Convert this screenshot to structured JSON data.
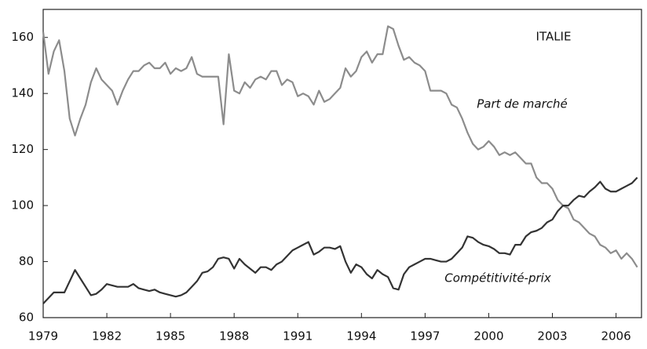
{
  "chart_data": {
    "type": "line",
    "title": "ITALIE",
    "x": [
      1979,
      1979.25,
      1979.5,
      1979.75,
      1980,
      1980.25,
      1980.5,
      1980.75,
      1981,
      1981.25,
      1981.5,
      1981.75,
      1982,
      1982.25,
      1982.5,
      1982.75,
      1983,
      1983.25,
      1983.5,
      1983.75,
      1984,
      1984.25,
      1984.5,
      1984.75,
      1985,
      1985.25,
      1985.5,
      1985.75,
      1986,
      1986.25,
      1986.5,
      1986.75,
      1987,
      1987.25,
      1987.5,
      1987.75,
      1988,
      1988.25,
      1988.5,
      1988.75,
      1989,
      1989.25,
      1989.5,
      1989.75,
      1990,
      1990.25,
      1990.5,
      1990.75,
      1991,
      1991.25,
      1991.5,
      1991.75,
      1992,
      1992.25,
      1992.5,
      1992.75,
      1993,
      1993.25,
      1993.5,
      1993.75,
      1994,
      1994.25,
      1994.5,
      1994.75,
      1995,
      1995.25,
      1995.5,
      1995.75,
      1996,
      1996.25,
      1996.5,
      1996.75,
      1997,
      1997.25,
      1997.5,
      1997.75,
      1998,
      1998.25,
      1998.5,
      1998.75,
      1999,
      1999.25,
      1999.5,
      1999.75,
      2000,
      2000.25,
      2000.5,
      2000.75,
      2001,
      2001.25,
      2001.5,
      2001.75,
      2002,
      2002.25,
      2002.5,
      2002.75,
      2003,
      2003.25,
      2003.5,
      2003.75,
      2004,
      2004.25,
      2004.5,
      2004.75,
      2005,
      2005.25,
      2005.5,
      2005.75,
      2006,
      2006.25,
      2006.5,
      2006.75,
      2007
    ],
    "series": [
      {
        "name": "Part de marché",
        "color": "#8c8c8c",
        "values": [
          162,
          147,
          155,
          159,
          148,
          131,
          125,
          131,
          136,
          144,
          149,
          145,
          143,
          141,
          136,
          141,
          145,
          148,
          148,
          150,
          151,
          149,
          149,
          151,
          147,
          149,
          148,
          149,
          153,
          147,
          146,
          146,
          146,
          146,
          129,
          154,
          141,
          140,
          144,
          142,
          145,
          146,
          145,
          148,
          148,
          143,
          145,
          144,
          139,
          140,
          139,
          136,
          141,
          137,
          138,
          140,
          142,
          149,
          146,
          148,
          153,
          155,
          151,
          154,
          154,
          164,
          163,
          157,
          152,
          153,
          151,
          150,
          148,
          141,
          141,
          141,
          140,
          136,
          135,
          131,
          126,
          122,
          120,
          121,
          123,
          121,
          118,
          119,
          118,
          119,
          117,
          115,
          115,
          110,
          108,
          108,
          106,
          102,
          100,
          99,
          95,
          94,
          92,
          90,
          89,
          86,
          85,
          83,
          84,
          81,
          83,
          81,
          78
        ]
      },
      {
        "name": "Compétitivité-prix",
        "color": "#333333",
        "values": [
          65,
          67,
          69,
          69,
          69,
          73,
          77,
          74,
          71,
          68,
          68.5,
          70,
          72,
          71.5,
          71,
          71,
          71,
          72,
          70.5,
          70,
          69.5,
          70,
          69,
          68.5,
          68,
          67.5,
          68,
          69,
          71,
          73,
          76,
          76.5,
          78,
          81,
          81.5,
          81,
          77.5,
          81,
          79,
          77.5,
          76,
          78,
          78,
          77,
          79,
          80,
          82,
          84,
          85,
          86,
          87,
          82.5,
          83.5,
          85,
          85,
          84.5,
          85.5,
          80,
          76,
          79,
          78,
          75.5,
          74,
          77,
          75.5,
          74.5,
          70.5,
          70,
          75.5,
          78,
          79,
          80,
          81,
          81,
          80.5,
          80,
          80,
          81,
          83,
          85,
          89,
          88.5,
          87,
          86,
          85.5,
          84.5,
          83,
          83,
          82.5,
          86,
          86,
          89,
          90.5,
          91,
          92,
          94,
          95,
          98,
          100,
          100,
          102,
          103.5,
          103,
          105,
          106.5,
          108.5,
          106,
          105,
          105,
          106,
          107,
          108,
          110
        ]
      }
    ],
    "xlim": [
      1979,
      2007.2
    ],
    "xticks": [
      1979,
      1982,
      1985,
      1988,
      1991,
      1994,
      1997,
      2000,
      2003,
      2006
    ],
    "ylim": [
      60,
      170
    ],
    "yticks": [
      60,
      80,
      100,
      120,
      140,
      160
    ],
    "grid": false
  }
}
